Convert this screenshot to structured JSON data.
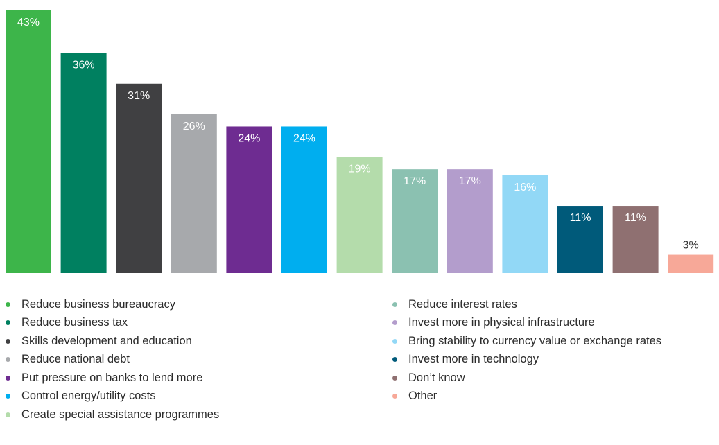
{
  "chart_data": {
    "type": "bar",
    "categories": [
      "Reduce business bureaucracy",
      "Reduce business tax",
      "Skills development and education",
      "Reduce national debt",
      "Put pressure on banks to lend more",
      "Control energy/utility costs",
      "Create special assistance programmes",
      "Reduce interest rates",
      "Invest more in physical infrastructure",
      "Bring stability to currency value or exchange rates",
      "Invest more in technology",
      "Don’t know",
      "Other"
    ],
    "values": [
      43,
      36,
      31,
      26,
      24,
      24,
      19,
      17,
      17,
      16,
      11,
      11,
      3
    ],
    "value_labels": [
      "43%",
      "36%",
      "31%",
      "26%",
      "24%",
      "24%",
      "19%",
      "17%",
      "17%",
      "16%",
      "11%",
      "11%",
      "3%"
    ],
    "colors": [
      "#3db54a",
      "#008060",
      "#404042",
      "#a7a9ac",
      "#6e2c91",
      "#00aeef",
      "#b4dcab",
      "#8bc1b1",
      "#b39dcc",
      "#92d8f6",
      "#005a7a",
      "#8f7071",
      "#f7a898"
    ],
    "label_colors": [
      "#ffffff",
      "#ffffff",
      "#ffffff",
      "#ffffff",
      "#ffffff",
      "#ffffff",
      "#ffffff",
      "#ffffff",
      "#ffffff",
      "#ffffff",
      "#ffffff",
      "#ffffff",
      "#333333"
    ],
    "ylim": [
      0,
      43
    ],
    "legend_position": "bottom",
    "grid": false
  }
}
